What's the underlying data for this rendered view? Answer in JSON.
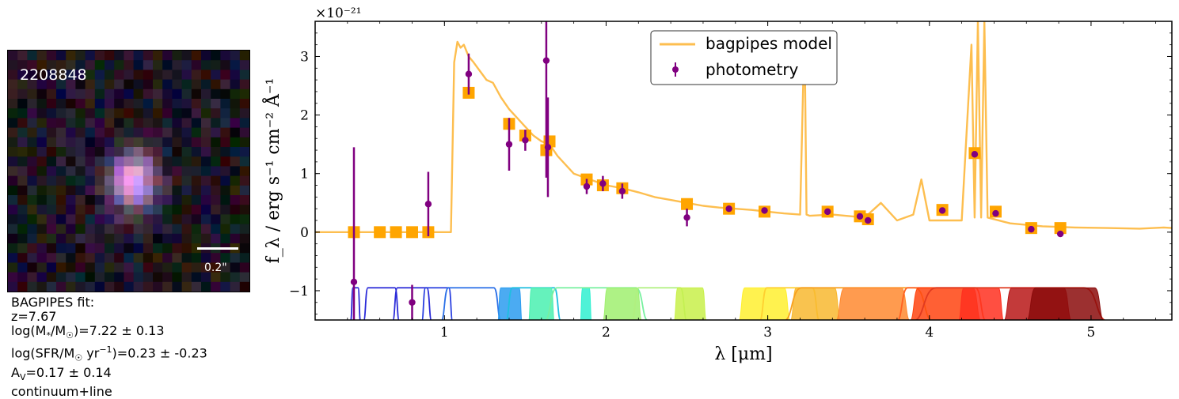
{
  "thumbnail": {
    "object_id": "2208848",
    "scale_label": "0.2\""
  },
  "fit_info": {
    "title": "BAGPIPES fit:",
    "redshift": "z=7.67",
    "mass_pre": "log(M",
    "mass_sub": "*",
    "mass_mid": "/M",
    "mass_sun": "☉",
    "mass_post": ")=7.22 ± 0.13",
    "sfr_pre": "log(SFR/M",
    "sfr_sun": "☉",
    "sfr_mid": " yr",
    "sfr_sup": "−1",
    "sfr_post": ")=0.23 ± -0.23",
    "av_pre": "A",
    "av_sub": "V",
    "av_post": "=0.17 ± 0.14",
    "mode": "continuum+line"
  },
  "chart_data": {
    "type": "scatter",
    "xlabel": "λ [μm]",
    "ylabel": "f_λ / erg s⁻¹ cm⁻² Å⁻¹",
    "y_scale_label": "×10⁻²¹",
    "xlim": [
      0.2,
      5.5
    ],
    "ylim": [
      -1.5,
      3.6
    ],
    "xticks": [
      1,
      2,
      3,
      4,
      5
    ],
    "yticks": [
      -1,
      0,
      1,
      2,
      3
    ],
    "ytick_labels": [
      "−1",
      "0",
      "1",
      "2",
      "3"
    ],
    "grid": false,
    "legend_position": "top-center",
    "legend": [
      "bagpipes model",
      "photometry"
    ],
    "colors": {
      "model": "#FDBE4F",
      "photometry": "#800080",
      "model_points": "#FFA500"
    },
    "model_line": {
      "x": [
        0.2,
        0.9,
        1.0,
        1.04,
        1.06,
        1.08,
        1.1,
        1.12,
        1.15,
        1.18,
        1.22,
        1.26,
        1.3,
        1.35,
        1.4,
        1.45,
        1.5,
        1.55,
        1.6,
        1.65,
        1.7,
        1.8,
        1.9,
        2.0,
        2.1,
        2.2,
        2.3,
        2.4,
        2.5,
        2.6,
        2.7,
        2.8,
        2.9,
        3.0,
        3.1,
        3.2,
        3.22,
        3.23,
        3.24,
        3.26,
        3.4,
        3.6,
        3.7,
        3.8,
        3.9,
        3.95,
        4.0,
        4.2,
        4.26,
        4.28,
        4.3,
        4.32,
        4.34,
        4.36,
        4.5,
        4.7,
        4.9,
        5.1,
        5.3,
        5.45,
        5.5
      ],
      "y": [
        0.0,
        0.0,
        0.0,
        0.0,
        2.9,
        3.25,
        3.15,
        3.2,
        3.0,
        2.9,
        2.75,
        2.6,
        2.55,
        2.3,
        2.1,
        1.95,
        1.8,
        1.65,
        1.55,
        1.5,
        1.3,
        1.0,
        0.9,
        0.8,
        0.75,
        0.68,
        0.6,
        0.55,
        0.5,
        0.45,
        0.42,
        0.4,
        0.38,
        0.35,
        0.32,
        0.3,
        2.6,
        2.75,
        0.3,
        0.28,
        0.3,
        0.25,
        0.5,
        0.2,
        0.3,
        0.9,
        0.2,
        0.2,
        3.2,
        0.25,
        3.6,
        0.25,
        3.6,
        0.25,
        0.15,
        0.1,
        0.08,
        0.07,
        0.06,
        0.08,
        0.07
      ]
    },
    "model_photometry": {
      "x": [
        0.44,
        0.6,
        0.7,
        0.8,
        0.9,
        1.15,
        1.4,
        1.5,
        1.63,
        1.65,
        1.88,
        1.98,
        2.1,
        2.5,
        2.76,
        2.98,
        3.37,
        3.57,
        3.62,
        4.08,
        4.28,
        4.41,
        4.63,
        4.81
      ],
      "y": [
        0.0,
        0.0,
        0.0,
        0.0,
        0.0,
        2.38,
        1.85,
        1.65,
        1.4,
        1.55,
        0.9,
        0.8,
        0.75,
        0.48,
        0.4,
        0.35,
        0.35,
        0.27,
        0.22,
        0.38,
        1.35,
        0.35,
        0.07,
        0.07
      ]
    },
    "photometry": {
      "x": [
        0.44,
        0.9,
        0.8,
        1.15,
        1.4,
        1.5,
        1.63,
        1.64,
        1.88,
        1.98,
        2.1,
        2.5,
        2.76,
        2.98,
        3.37,
        3.57,
        3.62,
        4.08,
        4.28,
        4.41,
        4.63,
        4.81
      ],
      "y": [
        -0.85,
        0.48,
        -1.2,
        2.7,
        1.5,
        1.57,
        2.93,
        1.45,
        0.78,
        0.83,
        0.7,
        0.25,
        0.4,
        0.37,
        0.35,
        0.27,
        0.2,
        0.37,
        1.33,
        0.32,
        0.05,
        -0.03
      ],
      "yerr": [
        2.3,
        0.55,
        0.3,
        0.35,
        0.45,
        0.18,
        2.0,
        0.85,
        0.13,
        0.13,
        0.13,
        0.15,
        0.05,
        0.05,
        0.05,
        0.05,
        0.05,
        0.05,
        0.05,
        0.05,
        0.05,
        0.05
      ]
    },
    "filters": [
      {
        "x0": 0.42,
        "x1": 0.48,
        "color": "#2a2ad8",
        "fill": false
      },
      {
        "x0": 0.5,
        "x1": 0.72,
        "color": "#2a2ad8",
        "fill": false
      },
      {
        "x0": 0.68,
        "x1": 0.92,
        "color": "#2a2ad8",
        "fill": false
      },
      {
        "x0": 0.86,
        "x1": 1.05,
        "color": "#2a40e0",
        "fill": false
      },
      {
        "x0": 0.98,
        "x1": 1.35,
        "color": "#2a6fe8",
        "fill": false
      },
      {
        "x0": 1.33,
        "x1": 1.48,
        "color": "#2b9cf0",
        "fill": true
      },
      {
        "x0": 1.38,
        "x1": 1.72,
        "color": "#1fbfe0",
        "fill": false
      },
      {
        "x0": 1.52,
        "x1": 1.68,
        "color": "#4af0b0",
        "fill": true
      },
      {
        "x0": 1.84,
        "x1": 1.91,
        "color": "#30f0d0",
        "fill": true
      },
      {
        "x0": 1.62,
        "x1": 2.26,
        "color": "#78f0a0",
        "fill": false
      },
      {
        "x0": 1.98,
        "x1": 2.22,
        "color": "#a0f070",
        "fill": true
      },
      {
        "x0": 2.16,
        "x1": 2.5,
        "color": "#b0f080",
        "fill": false
      },
      {
        "x0": 2.42,
        "x1": 2.62,
        "color": "#c8f04a",
        "fill": true
      },
      {
        "x0": 2.82,
        "x1": 3.14,
        "color": "#fff030",
        "fill": true
      },
      {
        "x0": 2.95,
        "x1": 3.32,
        "color": "#ffd030",
        "fill": false
      },
      {
        "x0": 3.14,
        "x1": 3.45,
        "color": "#f8b830",
        "fill": true
      },
      {
        "x0": 3.1,
        "x1": 4.02,
        "color": "#f8a020",
        "fill": false
      },
      {
        "x0": 3.42,
        "x1": 3.88,
        "color": "#ff8a30",
        "fill": true
      },
      {
        "x0": 3.8,
        "x1": 4.35,
        "color": "#ff6020",
        "fill": false
      },
      {
        "x0": 3.88,
        "x1": 4.32,
        "color": "#ff4410",
        "fill": true
      },
      {
        "x0": 4.18,
        "x1": 4.46,
        "color": "#ff3020",
        "fill": true
      },
      {
        "x0": 3.9,
        "x1": 5.1,
        "color": "#e03a20",
        "fill": false
      },
      {
        "x0": 4.46,
        "x1": 4.88,
        "color": "#b81818",
        "fill": true
      },
      {
        "x0": 4.6,
        "x1": 5.08,
        "color": "#8b0c0c",
        "fill": true
      }
    ]
  }
}
